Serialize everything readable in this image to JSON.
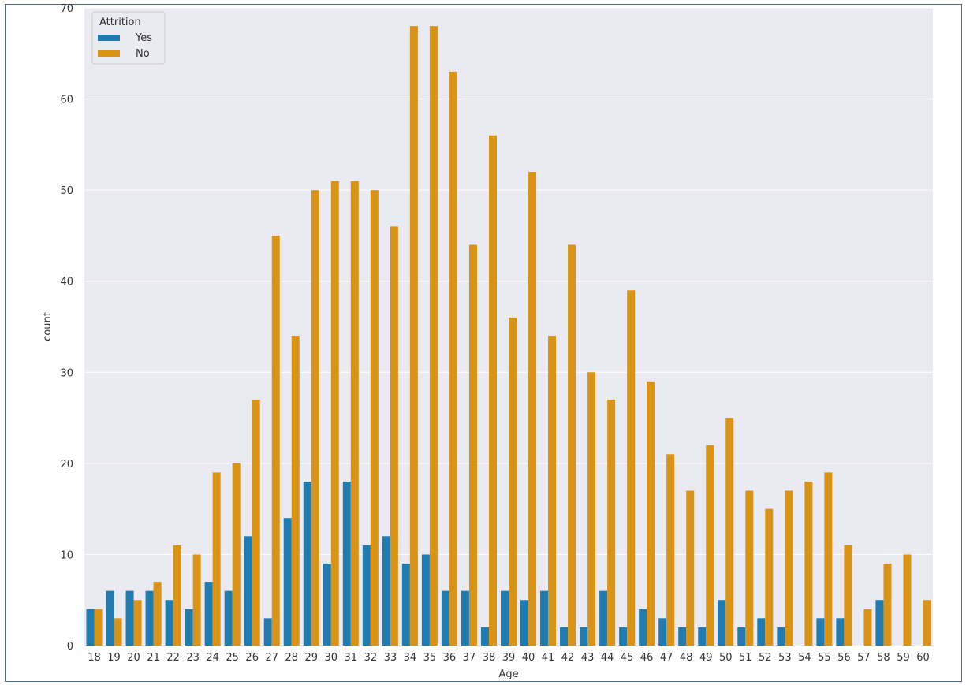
{
  "chart_data": {
    "type": "bar",
    "xlabel": "Age",
    "ylabel": "count",
    "ylim": [
      0,
      70
    ],
    "yticks": [
      0,
      10,
      20,
      30,
      40,
      50,
      60,
      70
    ],
    "grid": true,
    "legend": {
      "title": "Attrition",
      "placement": "top-left"
    },
    "categories": [
      "18",
      "19",
      "20",
      "21",
      "22",
      "23",
      "24",
      "25",
      "26",
      "27",
      "28",
      "29",
      "30",
      "31",
      "32",
      "33",
      "34",
      "35",
      "36",
      "37",
      "38",
      "39",
      "40",
      "41",
      "42",
      "43",
      "44",
      "45",
      "46",
      "47",
      "48",
      "49",
      "50",
      "51",
      "52",
      "53",
      "54",
      "55",
      "56",
      "57",
      "58",
      "59",
      "60"
    ],
    "series": [
      {
        "name": "Yes",
        "color": "#1f7bb0",
        "values": [
          4,
          6,
          6,
          6,
          5,
          4,
          7,
          6,
          12,
          3,
          14,
          18,
          9,
          18,
          11,
          12,
          9,
          10,
          6,
          6,
          2,
          6,
          5,
          6,
          2,
          2,
          6,
          2,
          4,
          3,
          2,
          2,
          5,
          2,
          3,
          2,
          0,
          3,
          3,
          0,
          5,
          0,
          0
        ]
      },
      {
        "name": "No",
        "color": "#d99417",
        "values": [
          4,
          3,
          5,
          7,
          11,
          10,
          19,
          20,
          27,
          45,
          34,
          50,
          51,
          51,
          50,
          46,
          68,
          68,
          63,
          44,
          56,
          36,
          52,
          34,
          44,
          30,
          27,
          39,
          29,
          21,
          17,
          22,
          25,
          17,
          15,
          17,
          18,
          19,
          11,
          4,
          9,
          10,
          5
        ]
      }
    ]
  }
}
